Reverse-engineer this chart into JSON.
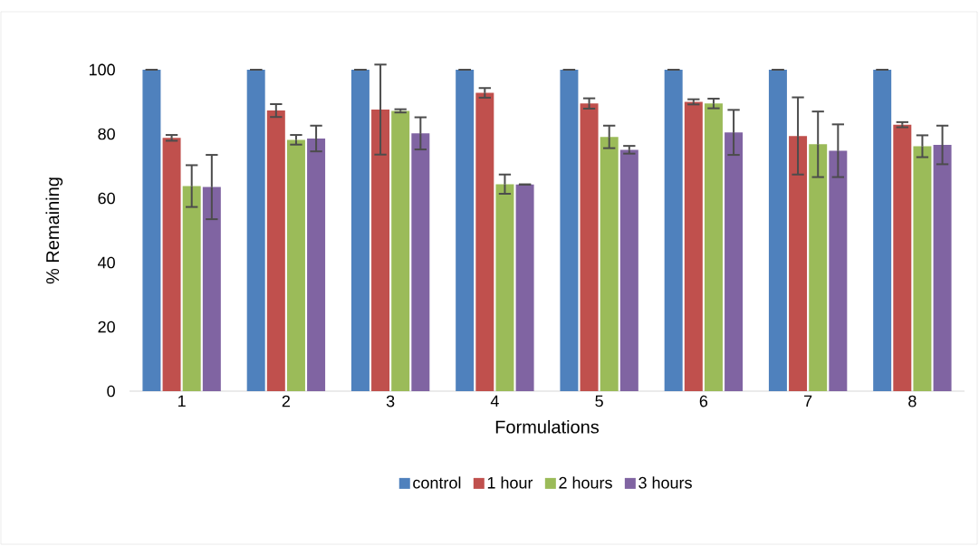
{
  "chart_data": {
    "type": "bar",
    "xlabel": "Formulations",
    "ylabel": "% Remaining",
    "categories": [
      "1",
      "2",
      "3",
      "4",
      "5",
      "6",
      "7",
      "8"
    ],
    "series": [
      {
        "name": "control",
        "color": "#4f81bd",
        "values": [
          100,
          100,
          100,
          100,
          100,
          100,
          100,
          100
        ],
        "errors": [
          0,
          0,
          0,
          0,
          0,
          0,
          0,
          0
        ]
      },
      {
        "name": "1 hour",
        "color": "#c0504d",
        "values": [
          78.8,
          87.3,
          87.6,
          92.8,
          89.5,
          90.0,
          79.4,
          82.9
        ],
        "errors": [
          0.9,
          2,
          14,
          1.5,
          1.6,
          0.8,
          12,
          0.8
        ]
      },
      {
        "name": "2 hours",
        "color": "#9bbb59",
        "values": [
          63.8,
          78.2,
          87.2,
          64.4,
          79.1,
          89.5,
          76.8,
          76.2
        ],
        "errors": [
          6.5,
          1.5,
          0.5,
          3,
          3.5,
          1.5,
          10.2,
          3.4
        ]
      },
      {
        "name": "3 hours",
        "color": "#8064a2",
        "values": [
          63.5,
          78.6,
          80.2,
          64.3,
          75.1,
          80.5,
          74.8,
          76.6
        ],
        "errors": [
          10,
          4,
          5,
          0,
          1.2,
          7,
          8.2,
          6
        ]
      }
    ],
    "ylim": [
      0,
      100
    ],
    "yticks": [
      0,
      20,
      40,
      60,
      80,
      100
    ],
    "grid": false,
    "legend": "bottom"
  }
}
